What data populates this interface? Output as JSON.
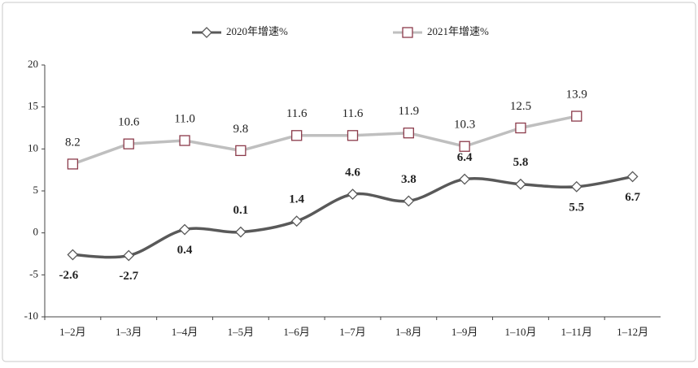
{
  "chart_data": {
    "type": "line",
    "categories": [
      "1–2月",
      "1–3月",
      "1–4月",
      "1–5月",
      "1–6月",
      "1–7月",
      "1–8月",
      "1–9月",
      "1–10月",
      "1–11月",
      "1–12月"
    ],
    "series": [
      {
        "name": "2020年增速%",
        "color": "#595959",
        "marker": "diamond",
        "smooth": true,
        "values": [
          -2.6,
          -2.7,
          0.4,
          0.1,
          1.4,
          4.6,
          3.8,
          6.4,
          5.8,
          5.5,
          6.7
        ],
        "value_labels": [
          "-2.6",
          "-2.7",
          "0.4",
          "0.1",
          "1.4",
          "4.6",
          "3.8",
          "6.4",
          "5.8",
          "5.5",
          "6.7"
        ]
      },
      {
        "name": "2021年增速%",
        "color": "#bfbfbf",
        "marker": "square",
        "smooth": false,
        "values": [
          8.2,
          10.6,
          11.0,
          9.8,
          11.6,
          11.6,
          11.9,
          10.3,
          12.5,
          13.9,
          null
        ],
        "value_labels": [
          "8.2",
          "10.6",
          "11.0",
          "9.8",
          "11.6",
          "11.6",
          "11.9",
          "10.3",
          "12.5",
          "13.9",
          null
        ]
      }
    ],
    "ylim": [
      -10,
      20
    ],
    "yticks": [
      -10,
      -5,
      0,
      5,
      10,
      15,
      20
    ],
    "legend": "top"
  }
}
